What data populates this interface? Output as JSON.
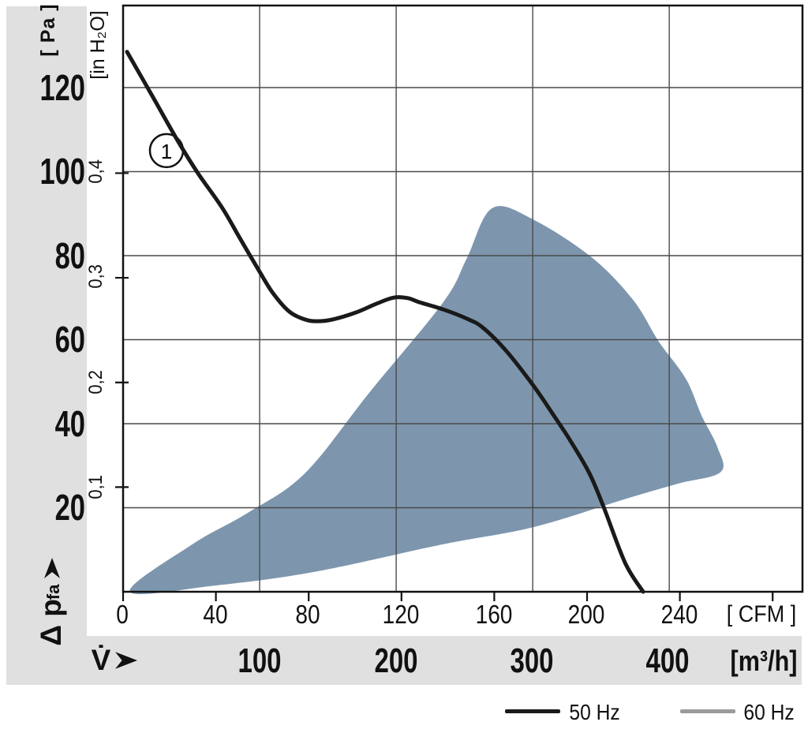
{
  "page": {
    "background": "#ffffff",
    "band_color": "#e0e0e0",
    "grid_color": "#4a4a4a",
    "frame_color": "#111111"
  },
  "chart_data": {
    "type": "line",
    "title": "",
    "x_axis": {
      "symbol": "V̇",
      "unit_primary": "[ CFM ]",
      "unit_secondary": "[m³/h]",
      "xlim_cfm": [
        0,
        293
      ],
      "m3h_to_cfm": 0.58858,
      "cfm_ticks": [
        0,
        40,
        80,
        120,
        160,
        200,
        240,
        280
      ],
      "cfm_tick_labels": [
        "0",
        "40",
        "80",
        "120",
        "160",
        "200",
        "240"
      ],
      "m3h_gridlines": [
        100,
        200,
        300,
        400
      ],
      "m3h_tick_labels": [
        "100",
        "200",
        "300",
        "400"
      ],
      "grid_on": true
    },
    "y_axis": {
      "symbol": "Δ p",
      "symbol_sub": "fa",
      "unit_primary": "[ Pa ]",
      "unit_secondary": "[in H₂O]",
      "ylim_pa": [
        0,
        139.5
      ],
      "inh2o_to_pa": 249.089,
      "pa_gridlines": [
        20,
        40,
        60,
        80,
        100,
        120
      ],
      "pa_tick_labels": [
        "20",
        "40",
        "60",
        "80",
        "100",
        "120"
      ],
      "inh2o_ticks": [
        0.1,
        0.2,
        0.3,
        0.4
      ],
      "inh2o_tick_labels": [
        "0,1",
        "0,2",
        "0,3",
        "0,4"
      ],
      "grid_on": true
    },
    "series": [
      {
        "name": "50 Hz",
        "color": "#1a1a1a",
        "width": 5,
        "marker": {
          "label": "1",
          "cfm": 18.7,
          "pa": 105
        },
        "points_cfm_pa": [
          [
            1.7,
            128.5
          ],
          [
            12.6,
            118
          ],
          [
            23.9,
            107
          ],
          [
            32.4,
            99.5
          ],
          [
            42.6,
            91.5
          ],
          [
            50.4,
            84.1
          ],
          [
            58.6,
            76.4
          ],
          [
            64.7,
            71
          ],
          [
            71.6,
            66.7
          ],
          [
            78.4,
            64.8
          ],
          [
            83.5,
            64.4
          ],
          [
            90.3,
            64.8
          ],
          [
            100.5,
            66.5
          ],
          [
            109,
            68.5
          ],
          [
            116.5,
            70
          ],
          [
            122.7,
            69.9
          ],
          [
            127.8,
            68.9
          ],
          [
            138,
            67.2
          ],
          [
            148.2,
            65
          ],
          [
            155,
            62.9
          ],
          [
            165.2,
            57.3
          ],
          [
            177.2,
            48.8
          ],
          [
            185.7,
            41.9
          ],
          [
            192.5,
            36.2
          ],
          [
            201,
            28.2
          ],
          [
            207.2,
            20.1
          ],
          [
            216.4,
            6.9
          ],
          [
            224.2,
            0
          ]
        ]
      },
      {
        "name": "60 Hz",
        "color": "#9b9b9b",
        "width": 4,
        "points_cfm_pa": []
      }
    ],
    "operating_range": {
      "color": "#7d96ae",
      "points_cfm_pa": [
        [
          3,
          0
        ],
        [
          40,
          1.5
        ],
        [
          82,
          4.7
        ],
        [
          138,
          11.3
        ],
        [
          177,
          15.4
        ],
        [
          216,
          22
        ],
        [
          239,
          25.7
        ],
        [
          257.6,
          28.5
        ],
        [
          256.2,
          34.4
        ],
        [
          249.4,
          41.9
        ],
        [
          242.6,
          50.7
        ],
        [
          231,
          59.5
        ],
        [
          219.8,
          69.5
        ],
        [
          202,
          79.6
        ],
        [
          176.8,
          88.6
        ],
        [
          159.1,
          91.3
        ],
        [
          148.2,
          79.4
        ],
        [
          138,
          68.9
        ],
        [
          106.3,
          47.5
        ],
        [
          78.4,
          28.2
        ],
        [
          53.8,
          18.8
        ],
        [
          29.9,
          11.3
        ]
      ]
    }
  },
  "legend": {
    "items": [
      {
        "label": "50 Hz",
        "color": "#1a1a1a"
      },
      {
        "label": "60 Hz",
        "color": "#9b9b9b"
      }
    ]
  }
}
